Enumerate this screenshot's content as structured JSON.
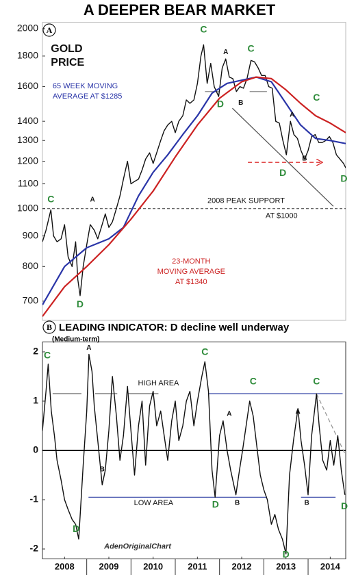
{
  "title": "A DEEPER BEAR MARKET",
  "chart_data": [
    {
      "type": "line",
      "panel_label": "A",
      "yscale": "log",
      "xlim": [
        2008,
        2014.85
      ],
      "ylim": [
        650,
        2050
      ],
      "yticks": [
        700,
        800,
        900,
        1000,
        1100,
        1200,
        1300,
        1400,
        1600,
        1800,
        2000
      ],
      "series": [
        {
          "color": "#111111",
          "x": [
            2008.0,
            2008.08,
            2008.19,
            2008.25,
            2008.33,
            2008.42,
            2008.5,
            2008.58,
            2008.67,
            2008.75,
            2008.8,
            2008.85,
            2008.92,
            2009.0,
            2009.08,
            2009.17,
            2009.25,
            2009.33,
            2009.42,
            2009.5,
            2009.58,
            2009.67,
            2009.75,
            2009.83,
            2009.92,
            2010.0,
            2010.08,
            2010.17,
            2010.25,
            2010.33,
            2010.42,
            2010.5,
            2010.58,
            2010.67,
            2010.75,
            2010.83,
            2010.92,
            2011.0,
            2011.08,
            2011.17,
            2011.25,
            2011.33,
            2011.42,
            2011.5,
            2011.58,
            2011.64,
            2011.72,
            2011.8,
            2011.88,
            2011.98,
            2012.06,
            2012.14,
            2012.22,
            2012.3,
            2012.38,
            2012.46,
            2012.54,
            2012.62,
            2012.71,
            2012.79,
            2012.87,
            2012.95,
            2013.03,
            2013.11,
            2013.19,
            2013.27,
            2013.35,
            2013.43,
            2013.51,
            2013.6,
            2013.68,
            2013.76,
            2013.84,
            2013.92,
            2014.0,
            2014.08,
            2014.16,
            2014.24,
            2014.32,
            2014.4,
            2014.48,
            2014.56,
            2014.64,
            2014.72,
            2014.8,
            2014.85
          ],
          "values": [
            880,
            920,
            995,
            900,
            880,
            890,
            940,
            830,
            800,
            880,
            760,
            715,
            800,
            870,
            940,
            920,
            890,
            930,
            980,
            930,
            950,
            1000,
            1050,
            1120,
            1200,
            1100,
            1110,
            1120,
            1160,
            1210,
            1240,
            1190,
            1240,
            1300,
            1350,
            1380,
            1400,
            1340,
            1400,
            1430,
            1520,
            1500,
            1520,
            1620,
            1800,
            1880,
            1620,
            1750,
            1600,
            1540,
            1720,
            1780,
            1660,
            1650,
            1570,
            1600,
            1590,
            1650,
            1770,
            1760,
            1720,
            1670,
            1670,
            1600,
            1590,
            1400,
            1390,
            1300,
            1230,
            1400,
            1330,
            1310,
            1250,
            1210,
            1250,
            1320,
            1330,
            1290,
            1290,
            1300,
            1320,
            1290,
            1230,
            1210,
            1190,
            1170
          ]
        },
        {
          "color": "#2a35a8",
          "x": [
            2008.0,
            2008.5,
            2009.0,
            2009.5,
            2009.83,
            2010.17,
            2010.5,
            2010.83,
            2011.17,
            2011.5,
            2011.83,
            2012.17,
            2012.5,
            2012.83,
            2013.17,
            2013.5,
            2013.83,
            2014.17,
            2014.5,
            2014.85
          ],
          "values": [
            690,
            800,
            860,
            890,
            930,
            1050,
            1150,
            1230,
            1330,
            1430,
            1560,
            1620,
            1640,
            1660,
            1630,
            1500,
            1380,
            1310,
            1300,
            1285
          ]
        },
        {
          "color": "#cc2222",
          "x": [
            2008.0,
            2008.5,
            2009.0,
            2009.5,
            2010.0,
            2010.5,
            2011.0,
            2011.5,
            2012.0,
            2012.5,
            2012.83,
            2013.17,
            2013.5,
            2013.83,
            2014.17,
            2014.5,
            2014.85
          ],
          "values": [
            660,
            740,
            800,
            870,
            960,
            1070,
            1220,
            1380,
            1530,
            1630,
            1660,
            1650,
            1580,
            1500,
            1430,
            1390,
            1340
          ]
        }
      ],
      "reference_lines": [
        {
          "value": 1000,
          "color": "#333333",
          "dash": true
        }
      ],
      "segments": [
        {
          "x": [
            2012.29,
            2014.57
          ],
          "y": [
            1472,
            1009
          ],
          "color": "#555555",
          "dash": false
        },
        {
          "x": [
            2012.64,
            2014.31
          ],
          "y": [
            1195,
            1195
          ],
          "color": "#dd3333",
          "dash": true,
          "arrow": true
        },
        {
          "x": [
            2011.67,
            2011.98
          ],
          "y": [
            1570,
            1570
          ],
          "color": "#888888",
          "dash": false
        },
        {
          "x": [
            2012.68,
            2013.07
          ],
          "y": [
            1570,
            1570
          ],
          "color": "#888888",
          "dash": false
        }
      ],
      "texts": [
        {
          "lines": [
            "GOLD",
            "PRICE"
          ],
          "x": 2008.19,
          "y": 1848,
          "color": "#111111",
          "anchor": "start",
          "bold": true
        },
        {
          "lines": [
            "65 WEEK MOVING",
            "AVERAGE AT $1285"
          ],
          "x": 2008.23,
          "y": 1602,
          "color": "#2a35a8",
          "anchor": "start"
        },
        {
          "lines": [
            "23-MONTH",
            "MOVING AVERAGE",
            "AT $1340"
          ],
          "x": 2011.36,
          "y": 815,
          "color": "#cc2222",
          "anchor": "middle"
        },
        {
          "lines": [
            "2008 PEAK SUPPORT"
          ],
          "x": 2012.6,
          "y": 1030,
          "color": "#111111",
          "anchor": "middle"
        },
        {
          "lines": [
            "AT $1000"
          ],
          "x": 2013.4,
          "y": 972,
          "color": "#111111",
          "anchor": "middle"
        }
      ],
      "annotations": [
        {
          "text": "C",
          "x": 2011.64,
          "y": 1990,
          "color": "#2e8b3a"
        },
        {
          "text": "A",
          "x": 2012.14,
          "y": 1826,
          "color": "#111111"
        },
        {
          "text": "C",
          "x": 2012.71,
          "y": 1848,
          "color": "#2e8b3a"
        },
        {
          "text": "D",
          "x": 2012.02,
          "y": 1493,
          "color": "#2e8b3a"
        },
        {
          "text": "B",
          "x": 2012.48,
          "y": 1502,
          "color": "#111111"
        },
        {
          "text": "C",
          "x": 2014.19,
          "y": 1531,
          "color": "#2e8b3a"
        },
        {
          "text": "A",
          "x": 2013.64,
          "y": 1434,
          "color": "#111111"
        },
        {
          "text": "D",
          "x": 2013.43,
          "y": 1146,
          "color": "#2e8b3a"
        },
        {
          "text": "B",
          "x": 2013.92,
          "y": 1212,
          "color": "#111111"
        },
        {
          "text": "D",
          "x": 2014.81,
          "y": 1120,
          "color": "#2e8b3a"
        },
        {
          "text": "C",
          "x": 2008.19,
          "y": 1034,
          "color": "#2e8b3a"
        },
        {
          "text": "A",
          "x": 2009.13,
          "y": 1034,
          "color": "#111111"
        },
        {
          "text": "D",
          "x": 2008.85,
          "y": 690,
          "color": "#2e8b3a"
        }
      ]
    },
    {
      "type": "line",
      "panel_label": "B",
      "title": "LEADING INDICATOR: D decline well underway",
      "subtitle": "(Medium-term)",
      "xlim": [
        2008,
        2014.85
      ],
      "ylim": [
        -2.2,
        2.2
      ],
      "yticks": [
        -2,
        -1,
        0,
        1,
        2
      ],
      "xticks": [
        {
          "value": 2008.5,
          "label": "2008"
        },
        {
          "value": 2009.5,
          "label": "2009"
        },
        {
          "value": 2010.5,
          "label": "2010"
        },
        {
          "value": 2011.5,
          "label": "2011"
        },
        {
          "value": 2012.5,
          "label": "2012"
        },
        {
          "value": 2013.5,
          "label": "2013"
        },
        {
          "value": 2014.5,
          "label": "2014"
        }
      ],
      "series": [
        {
          "color": "#111111",
          "x": [
            2008.0,
            2008.08,
            2008.13,
            2008.2,
            2008.27,
            2008.33,
            2008.42,
            2008.5,
            2008.58,
            2008.67,
            2008.75,
            2008.82,
            2008.92,
            2009.0,
            2009.05,
            2009.12,
            2009.17,
            2009.25,
            2009.35,
            2009.42,
            2009.5,
            2009.58,
            2009.67,
            2009.75,
            2009.83,
            2009.92,
            2010.0,
            2010.08,
            2010.17,
            2010.25,
            2010.33,
            2010.42,
            2010.5,
            2010.58,
            2010.67,
            2010.75,
            2010.83,
            2010.92,
            2011.0,
            2011.08,
            2011.17,
            2011.25,
            2011.33,
            2011.42,
            2011.5,
            2011.6,
            2011.67,
            2011.75,
            2011.83,
            2011.9,
            2012.0,
            2012.08,
            2012.17,
            2012.25,
            2012.37,
            2012.45,
            2012.52,
            2012.6,
            2012.68,
            2012.76,
            2012.84,
            2012.92,
            2013.0,
            2013.08,
            2013.17,
            2013.25,
            2013.33,
            2013.42,
            2013.5,
            2013.58,
            2013.67,
            2013.77,
            2013.84,
            2013.92,
            2014.0,
            2014.08,
            2014.19,
            2014.25,
            2014.33,
            2014.42,
            2014.5,
            2014.58,
            2014.67,
            2014.75,
            2014.83
          ],
          "values": [
            0.4,
            1.2,
            1.75,
            0.8,
            0.3,
            -0.2,
            -0.6,
            -1.0,
            -1.2,
            -1.4,
            -1.5,
            -1.8,
            -0.3,
            0.8,
            1.95,
            1.6,
            0.9,
            0.2,
            -0.7,
            -0.4,
            0.4,
            1.5,
            0.7,
            -0.2,
            0.3,
            1.3,
            0.4,
            -0.5,
            0.5,
            1.0,
            -0.3,
            0.9,
            1.2,
            0.5,
            0.8,
            0.3,
            -0.2,
            0.6,
            1.0,
            0.2,
            0.5,
            1.0,
            1.2,
            0.5,
            1.0,
            1.5,
            1.8,
            1.2,
            -0.4,
            -0.95,
            0.3,
            0.6,
            0.0,
            -0.4,
            -0.9,
            -0.4,
            0.0,
            0.5,
            1.0,
            0.7,
            0.1,
            -0.5,
            -0.8,
            -1.0,
            -1.5,
            -1.3,
            -1.6,
            -1.8,
            -2.1,
            -0.5,
            0.2,
            0.85,
            0.2,
            -0.3,
            -0.9,
            0.3,
            1.15,
            0.5,
            -0.2,
            -0.4,
            0.2,
            -0.3,
            0.3,
            -0.4,
            -0.9
          ]
        }
      ],
      "reference_lines": [
        {
          "value": 0,
          "color": "#000000",
          "dash": false,
          "bold": true
        }
      ],
      "segments": [
        {
          "x": [
            2008.23,
            2008.88
          ],
          "y": [
            1.15,
            1.15
          ],
          "color": "#666666",
          "dash": false
        },
        {
          "x": [
            2009.19,
            2009.69
          ],
          "y": [
            1.15,
            1.15
          ],
          "color": "#666666",
          "dash": false
        },
        {
          "x": [
            2009.94,
            2010.62
          ],
          "y": [
            1.15,
            1.15
          ],
          "color": "#666666",
          "dash": false
        },
        {
          "x": [
            2011.75,
            2014.78
          ],
          "y": [
            1.15,
            1.15
          ],
          "color": "#3a4aa8",
          "dash": false
        },
        {
          "x": [
            2009.04,
            2013.07
          ],
          "y": [
            -0.95,
            -0.95
          ],
          "color": "#3a4aa8",
          "dash": false
        },
        {
          "x": [
            2013.84,
            2014.62
          ],
          "y": [
            -0.95,
            -0.95
          ],
          "color": "#3a4aa8",
          "dash": false
        },
        {
          "x": [
            2014.19,
            2014.85
          ],
          "y": [
            1.15,
            -0.1
          ],
          "color": "#999999",
          "dash": true
        }
      ],
      "texts": [
        {
          "lines": [
            "HIGH AREA"
          ],
          "x": 2010.62,
          "y": 1.36,
          "color": "#111111",
          "anchor": "middle"
        },
        {
          "lines": [
            "LOW  AREA"
          ],
          "x": 2010.51,
          "y": -1.07,
          "color": "#111111",
          "anchor": "middle"
        },
        {
          "lines": [
            "AdenOriginalChart"
          ],
          "x": 2010.15,
          "y": -1.95,
          "color": "#333333",
          "anchor": "middle",
          "italic": true
        }
      ],
      "annotations": [
        {
          "text": "C",
          "x": 2008.11,
          "y": 1.92,
          "color": "#2e8b3a"
        },
        {
          "text": "A",
          "x": 2009.05,
          "y": 2.08,
          "color": "#111111"
        },
        {
          "text": "B",
          "x": 2009.35,
          "y": -0.39,
          "color": "#111111"
        },
        {
          "text": "D",
          "x": 2008.76,
          "y": -1.6,
          "color": "#2e8b3a"
        },
        {
          "text": "C",
          "x": 2011.67,
          "y": 1.99,
          "color": "#2e8b3a"
        },
        {
          "text": "C",
          "x": 2012.76,
          "y": 1.39,
          "color": "#2e8b3a"
        },
        {
          "text": "A",
          "x": 2012.22,
          "y": 0.74,
          "color": "#111111"
        },
        {
          "text": "D",
          "x": 2011.91,
          "y": -1.11,
          "color": "#2e8b3a"
        },
        {
          "text": "B",
          "x": 2012.4,
          "y": -1.07,
          "color": "#111111"
        },
        {
          "text": "D",
          "x": 2013.5,
          "y": -2.12,
          "color": "#2e8b3a"
        },
        {
          "text": "A",
          "x": 2013.77,
          "y": 0.78,
          "color": "#111111"
        },
        {
          "text": "B",
          "x": 2013.97,
          "y": -1.07,
          "color": "#111111"
        },
        {
          "text": "C",
          "x": 2014.19,
          "y": 1.39,
          "color": "#2e8b3a"
        },
        {
          "text": "D",
          "x": 2014.82,
          "y": -1.14,
          "color": "#2e8b3a"
        }
      ]
    }
  ]
}
